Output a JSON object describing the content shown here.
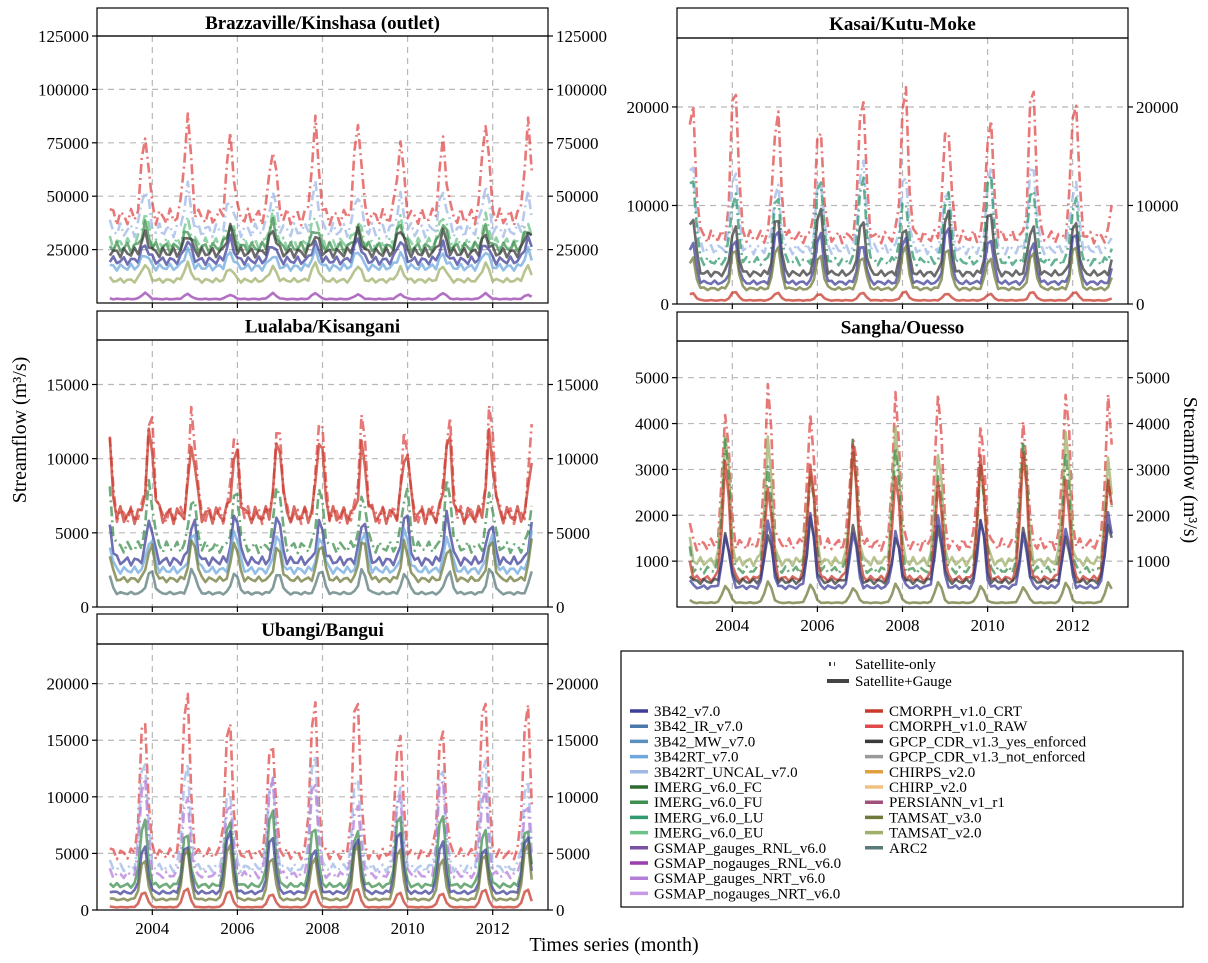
{
  "figure": {
    "xlabel": "Times series (month)",
    "ylabel_left": "Streamflow (m³/s)",
    "ylabel_right": "Streamflow (m³/s)"
  },
  "legend": {
    "style_items": [
      {
        "label": "Satellite-only",
        "style": "dotted"
      },
      {
        "label": "Satellite+Gauge",
        "style": "solid"
      }
    ],
    "products": [
      {
        "name": "3B42_v7.0",
        "color": "#3f3f9a"
      },
      {
        "name": "3B42_IR_v7.0",
        "color": "#4a78a8"
      },
      {
        "name": "3B42_MW_v7.0",
        "color": "#5a8fc0"
      },
      {
        "name": "3B42RT_v7.0",
        "color": "#6fa8dc"
      },
      {
        "name": "3B42RT_UNCAL_v7.0",
        "color": "#9fb8e6"
      },
      {
        "name": "IMERG_v6.0_FC",
        "color": "#2e6b2e"
      },
      {
        "name": "IMERG_v6.0_FU",
        "color": "#3f8f4f"
      },
      {
        "name": "IMERG_v6.0_LU",
        "color": "#2f9a6f"
      },
      {
        "name": "IMERG_v6.0_EU",
        "color": "#6cc38a"
      },
      {
        "name": "GSMAP_gauges_RNL_v6.0",
        "color": "#7a50a0"
      },
      {
        "name": "GSMAP_nogauges_RNL_v6.0",
        "color": "#9a3fb0"
      },
      {
        "name": "GSMAP_gauges_NRT_v6.0",
        "color": "#b57fd8"
      },
      {
        "name": "GSMAP_nogauges_NRT_v6.0",
        "color": "#c79ae6"
      },
      {
        "name": "CMORPH_v1.0_CRT",
        "color": "#c83a2c"
      },
      {
        "name": "CMORPH_v1.0_RAW",
        "color": "#e04a4a"
      },
      {
        "name": "GPCP_CDR_v1.3_yes_enforced",
        "color": "#3a3a3a"
      },
      {
        "name": "GPCP_CDR_v1.3_not_enforced",
        "color": "#9a9a9a"
      },
      {
        "name": "CHIRPS_v2.0",
        "color": "#e0a040"
      },
      {
        "name": "CHIRP_v2.0",
        "color": "#f0c080"
      },
      {
        "name": "PERSIANN_v1_r1",
        "color": "#a0507a"
      },
      {
        "name": "TAMSAT_v3.0",
        "color": "#6f7a3a"
      },
      {
        "name": "TAMSAT_v2.0",
        "color": "#9fb06a"
      },
      {
        "name": "ARC2",
        "color": "#5a7a7a"
      }
    ]
  },
  "chart_data": [
    {
      "type": "line",
      "title": "Brazzaville/Kinshasa (outlet)",
      "xlabel": "Times series (month)",
      "ylabel": "Streamflow (m³/s)",
      "x_range": [
        2002.7,
        2013.3
      ],
      "xticks": [
        2004,
        2006,
        2008,
        2010,
        2012
      ],
      "ylim": [
        0,
        125000
      ],
      "yticks": [
        25000,
        50000,
        75000,
        100000,
        125000
      ],
      "show_xtick_labels": false,
      "series": [
        {
          "name": "CMORPH_v1.0_RAW",
          "style": "dotted",
          "base": 65000,
          "amp": 40000,
          "phase": 0.83
        },
        {
          "name": "3B42RT_UNCAL_v7.0",
          "style": "dotted",
          "base": 55000,
          "amp": 18000,
          "phase": 0.83
        },
        {
          "name": "IMERG_v6.0_EU",
          "style": "dotted",
          "base": 45000,
          "amp": 12000,
          "phase": 0.83
        },
        {
          "name": "IMERG_v6.0_FU",
          "style": "solid",
          "base": 42000,
          "amp": 10000,
          "phase": 0.83
        },
        {
          "name": "GPCP_CDR_v1.3_yes_enforced",
          "style": "solid",
          "base": 38000,
          "amp": 10000,
          "phase": 0.83
        },
        {
          "name": "3B42_v7.0",
          "style": "solid",
          "base": 32000,
          "amp": 9000,
          "phase": 0.83
        },
        {
          "name": "3B42RT_v7.0",
          "style": "solid",
          "base": 27000,
          "amp": 7000,
          "phase": 0.83
        },
        {
          "name": "TAMSAT_v2.0",
          "style": "solid",
          "base": 17000,
          "amp": 7000,
          "phase": 0.83
        },
        {
          "name": "GSMAP_nogauges_RNL_v6.0",
          "style": "solid",
          "base": 3000,
          "amp": 2500,
          "phase": 0.83
        }
      ]
    },
    {
      "type": "line",
      "title": "Kasai/Kutu-Moke",
      "xlabel": "Times series (month)",
      "ylabel": "Streamflow (m³/s)",
      "x_range": [
        2002.7,
        2013.3
      ],
      "xticks": [
        2004,
        2006,
        2008,
        2010,
        2012
      ],
      "ylim": [
        0,
        27000
      ],
      "yticks": [
        0,
        10000,
        20000
      ],
      "show_xtick_labels": false,
      "series": [
        {
          "name": "CMORPH_v1.0_RAW",
          "style": "dotted",
          "base": 11000,
          "amp": 14000,
          "phase": 0.05
        },
        {
          "name": "3B42RT_UNCAL_v7.0",
          "style": "dotted",
          "base": 9000,
          "amp": 8000,
          "phase": 0.05
        },
        {
          "name": "IMERG_v6.0_LU",
          "style": "dotted",
          "base": 7000,
          "amp": 8000,
          "phase": 0.05
        },
        {
          "name": "GPCP_CDR_v1.3_yes_enforced",
          "style": "solid",
          "base": 5000,
          "amp": 6000,
          "phase": 0.05
        },
        {
          "name": "3B42_v7.0",
          "style": "solid",
          "base": 3500,
          "amp": 5000,
          "phase": 0.05
        },
        {
          "name": "TAMSAT_v3.0",
          "style": "solid",
          "base": 2500,
          "amp": 4000,
          "phase": 0.05
        },
        {
          "name": "CMORPH_v1.0_CRT",
          "style": "solid",
          "base": 600,
          "amp": 800,
          "phase": 0.05
        }
      ]
    },
    {
      "type": "line",
      "title": "Lualaba/Kisangani",
      "xlabel": "Times series (month)",
      "ylabel": "Streamflow (m³/s)",
      "x_range": [
        2002.7,
        2013.3
      ],
      "xticks": [
        2004,
        2006,
        2008,
        2010,
        2012
      ],
      "ylim": [
        0,
        18000
      ],
      "yticks": [
        0,
        5000,
        10000,
        15000
      ],
      "show_xtick_labels": false,
      "series": [
        {
          "name": "CMORPH_v1.0_RAW",
          "style": "dotted",
          "base": 10000,
          "amp": 6500,
          "phase": 0.95
        },
        {
          "name": "CMORPH_v1.0_CRT",
          "style": "solid",
          "base": 10000,
          "amp": 5000,
          "phase": 0.95
        },
        {
          "name": "IMERG_v6.0_FU",
          "style": "dotted",
          "base": 6500,
          "amp": 4000,
          "phase": 0.95
        },
        {
          "name": "3B42_v7.0",
          "style": "solid",
          "base": 5000,
          "amp": 3000,
          "phase": 0.95
        },
        {
          "name": "3B42RT_v7.0",
          "style": "solid",
          "base": 4000,
          "amp": 2500,
          "phase": 0.95
        },
        {
          "name": "TAMSAT_v3.0",
          "style": "solid",
          "base": 3000,
          "amp": 2500,
          "phase": 0.95
        },
        {
          "name": "ARC2",
          "style": "solid",
          "base": 1500,
          "amp": 1500,
          "phase": 0.95
        }
      ]
    },
    {
      "type": "line",
      "title": "Sangha/Ouesso",
      "xlabel": "Times series (month)",
      "ylabel": "Streamflow (m³/s)",
      "x_range": [
        2002.7,
        2013.3
      ],
      "xticks": [
        2004,
        2006,
        2008,
        2010,
        2012
      ],
      "ylim": [
        0,
        5800
      ],
      "yticks": [
        1000,
        2000,
        3000,
        4000,
        5000
      ],
      "show_xtick_labels": true,
      "series": [
        {
          "name": "CMORPH_v1.0_RAW",
          "style": "dotted",
          "base": 2200,
          "amp": 3000,
          "phase": 0.85
        },
        {
          "name": "TAMSAT_v2.0",
          "style": "solid",
          "base": 1600,
          "amp": 2500,
          "phase": 0.85
        },
        {
          "name": "IMERG_v6.0_FU",
          "style": "dotted",
          "base": 1300,
          "amp": 2500,
          "phase": 0.85
        },
        {
          "name": "CMORPH_v1.0_CRT",
          "style": "solid",
          "base": 1000,
          "amp": 2500,
          "phase": 0.85
        },
        {
          "name": "GPCP_CDR_v1.3_yes_enforced",
          "style": "solid",
          "base": 900,
          "amp": 1200,
          "phase": 0.85
        },
        {
          "name": "3B42_v7.0",
          "style": "solid",
          "base": 700,
          "amp": 1400,
          "phase": 0.85
        },
        {
          "name": "TAMSAT_v3.0",
          "style": "solid",
          "base": 150,
          "amp": 400,
          "phase": 0.85
        }
      ]
    },
    {
      "type": "line",
      "title": "Ubangi/Bangui",
      "xlabel": "Times series (month)",
      "ylabel": "Streamflow (m³/s)",
      "x_range": [
        2002.7,
        2013.3
      ],
      "xticks": [
        2004,
        2006,
        2008,
        2010,
        2012
      ],
      "ylim": [
        0,
        23500
      ],
      "yticks": [
        0,
        5000,
        10000,
        15000,
        20000
      ],
      "show_xtick_labels": true,
      "series": [
        {
          "name": "CMORPH_v1.0_RAW",
          "style": "dotted",
          "base": 8000,
          "amp": 13000,
          "phase": 0.8
        },
        {
          "name": "3B42RT_UNCAL_v7.0",
          "style": "dotted",
          "base": 6000,
          "amp": 9000,
          "phase": 0.8
        },
        {
          "name": "GSMAP_gauges_NRT_v6.0",
          "style": "dotted",
          "base": 5000,
          "amp": 8000,
          "phase": 0.8
        },
        {
          "name": "IMERG_v6.0_FU",
          "style": "solid",
          "base": 3500,
          "amp": 6000,
          "phase": 0.8
        },
        {
          "name": "3B42_v7.0",
          "style": "solid",
          "base": 2500,
          "amp": 5000,
          "phase": 0.8
        },
        {
          "name": "TAMSAT_v3.0",
          "style": "solid",
          "base": 1500,
          "amp": 4500,
          "phase": 0.8
        },
        {
          "name": "CMORPH_v1.0_CRT",
          "style": "solid",
          "base": 400,
          "amp": 1500,
          "phase": 0.8
        }
      ]
    }
  ]
}
